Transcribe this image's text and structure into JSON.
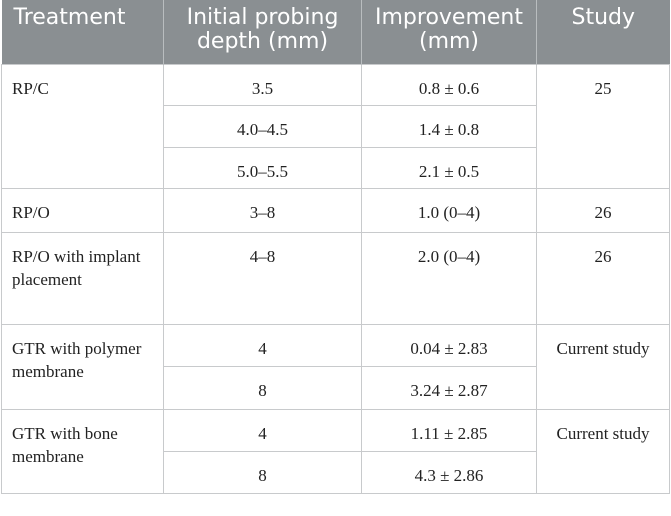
{
  "table": {
    "headers": [
      "Treatment",
      "Initial probing depth (mm)",
      "Improvement (mm)",
      "Study"
    ],
    "groups": [
      {
        "treatment": "RP/C",
        "study": "25",
        "rows": [
          {
            "depth": "3.5",
            "improvement": "0.8 ± 0.6"
          },
          {
            "depth": "4.0–4.5",
            "improvement": "1.4 ± 0.8"
          },
          {
            "depth": "5.0–5.5",
            "improvement": "2.1 ± 0.5"
          }
        ]
      },
      {
        "treatment": "RP/O",
        "study": "26",
        "rows": [
          {
            "depth": "3–8",
            "improvement": "1.0 (0–4)"
          }
        ]
      },
      {
        "treatment": "RP/O with implant placement",
        "study": "26",
        "rows": [
          {
            "depth": "4–8",
            "improvement": "2.0 (0–4)"
          }
        ]
      },
      {
        "treatment": "GTR with polymer membrane",
        "study": "Current study",
        "rows": [
          {
            "depth": "4",
            "improvement": "0.04 ± 2.83"
          },
          {
            "depth": "8",
            "improvement": "3.24 ± 2.87"
          }
        ]
      },
      {
        "treatment": "GTR with bone membrane",
        "study": "Current study",
        "rows": [
          {
            "depth": "4",
            "improvement": "1.11 ± 2.85"
          },
          {
            "depth": "8",
            "improvement": "4.3 ± 2.86"
          }
        ]
      }
    ]
  }
}
